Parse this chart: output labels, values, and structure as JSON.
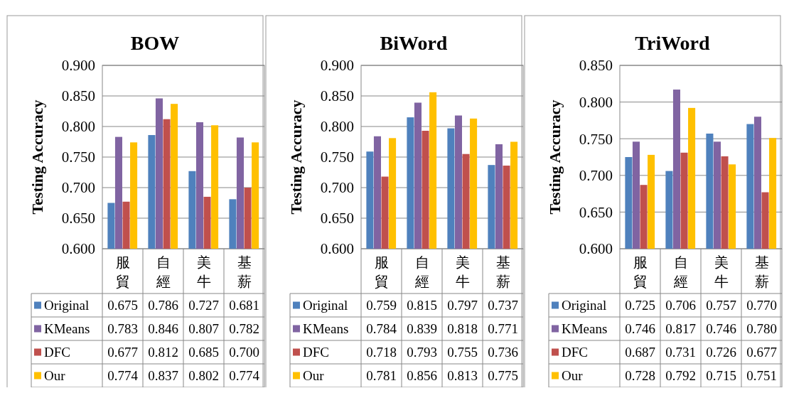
{
  "chart_data": [
    {
      "type": "bar",
      "title": "BOW",
      "ylabel": "Testing Accuracy",
      "categories": [
        "服貿",
        "自經",
        "美牛",
        "基薪"
      ],
      "ylim": [
        0.6,
        0.9
      ],
      "yticks": [
        {
          "value": 0.6,
          "label": "0.600"
        },
        {
          "value": 0.65,
          "label": "0.650"
        },
        {
          "value": 0.7,
          "label": "0.700"
        },
        {
          "value": 0.75,
          "label": "0.750"
        },
        {
          "value": 0.8,
          "label": "0.800"
        },
        {
          "value": 0.85,
          "label": "0.850"
        },
        {
          "value": 0.9,
          "label": "0.900"
        }
      ],
      "grid": "y",
      "legend": "bottom",
      "series": [
        {
          "name": "Original",
          "color": "#4f81bd",
          "values": [
            0.675,
            0.786,
            0.727,
            0.681
          ],
          "value_labels": [
            "0.675",
            "0.786",
            "0.727",
            "0.681"
          ]
        },
        {
          "name": "KMeans",
          "color": "#8064a2",
          "values": [
            0.783,
            0.846,
            0.807,
            0.782
          ],
          "value_labels": [
            "0.783",
            "0.846",
            "0.807",
            "0.782"
          ]
        },
        {
          "name": "DFC",
          "color": "#c0504d",
          "values": [
            0.677,
            0.812,
            0.685,
            0.7
          ],
          "value_labels": [
            "0.677",
            "0.812",
            "0.685",
            "0.700"
          ]
        },
        {
          "name": "Our",
          "color": "#ffc000",
          "values": [
            0.774,
            0.837,
            0.802,
            0.774
          ],
          "value_labels": [
            "0.774",
            "0.837",
            "0.802",
            "0.774"
          ]
        }
      ]
    },
    {
      "type": "bar",
      "title": "BiWord",
      "ylabel": "Testing Accuracy",
      "categories": [
        "服貿",
        "自經",
        "美牛",
        "基薪"
      ],
      "ylim": [
        0.6,
        0.9
      ],
      "yticks": [
        {
          "value": 0.6,
          "label": "0.600"
        },
        {
          "value": 0.65,
          "label": "0.650"
        },
        {
          "value": 0.7,
          "label": "0.700"
        },
        {
          "value": 0.75,
          "label": "0.750"
        },
        {
          "value": 0.8,
          "label": "0.800"
        },
        {
          "value": 0.85,
          "label": "0.850"
        },
        {
          "value": 0.9,
          "label": "0.900"
        }
      ],
      "grid": "y",
      "legend": "bottom",
      "series": [
        {
          "name": "Original",
          "color": "#4f81bd",
          "values": [
            0.759,
            0.815,
            0.797,
            0.737
          ],
          "value_labels": [
            "0.759",
            "0.815",
            "0.797",
            "0.737"
          ]
        },
        {
          "name": "KMeans",
          "color": "#8064a2",
          "values": [
            0.784,
            0.839,
            0.818,
            0.771
          ],
          "value_labels": [
            "0.784",
            "0.839",
            "0.818",
            "0.771"
          ]
        },
        {
          "name": "DFC",
          "color": "#c0504d",
          "values": [
            0.718,
            0.793,
            0.755,
            0.736
          ],
          "value_labels": [
            "0.718",
            "0.793",
            "0.755",
            "0.736"
          ]
        },
        {
          "name": "Our",
          "color": "#ffc000",
          "values": [
            0.781,
            0.856,
            0.813,
            0.775
          ],
          "value_labels": [
            "0.781",
            "0.856",
            "0.813",
            "0.775"
          ]
        }
      ]
    },
    {
      "type": "bar",
      "title": "TriWord",
      "ylabel": "Testing Accuracy",
      "categories": [
        "服貿",
        "自經",
        "美牛",
        "基薪"
      ],
      "ylim": [
        0.6,
        0.85
      ],
      "yticks": [
        {
          "value": 0.6,
          "label": "0.600"
        },
        {
          "value": 0.65,
          "label": "0.650"
        },
        {
          "value": 0.7,
          "label": "0.700"
        },
        {
          "value": 0.75,
          "label": "0.750"
        },
        {
          "value": 0.8,
          "label": "0.800"
        },
        {
          "value": 0.85,
          "label": "0.850"
        }
      ],
      "grid": "y",
      "legend": "bottom",
      "series": [
        {
          "name": "Original",
          "color": "#4f81bd",
          "values": [
            0.725,
            0.706,
            0.757,
            0.77
          ],
          "value_labels": [
            "0.725",
            "0.706",
            "0.757",
            "0.770"
          ]
        },
        {
          "name": "KMeans",
          "color": "#8064a2",
          "values": [
            0.746,
            0.817,
            0.746,
            0.78
          ],
          "value_labels": [
            "0.746",
            "0.817",
            "0.746",
            "0.780"
          ]
        },
        {
          "name": "DFC",
          "color": "#c0504d",
          "values": [
            0.687,
            0.731,
            0.726,
            0.677
          ],
          "value_labels": [
            "0.687",
            "0.731",
            "0.726",
            "0.677"
          ]
        },
        {
          "name": "Our",
          "color": "#ffc000",
          "values": [
            0.728,
            0.792,
            0.715,
            0.751
          ],
          "value_labels": [
            "0.728",
            "0.792",
            "0.715",
            "0.751"
          ]
        }
      ]
    }
  ]
}
